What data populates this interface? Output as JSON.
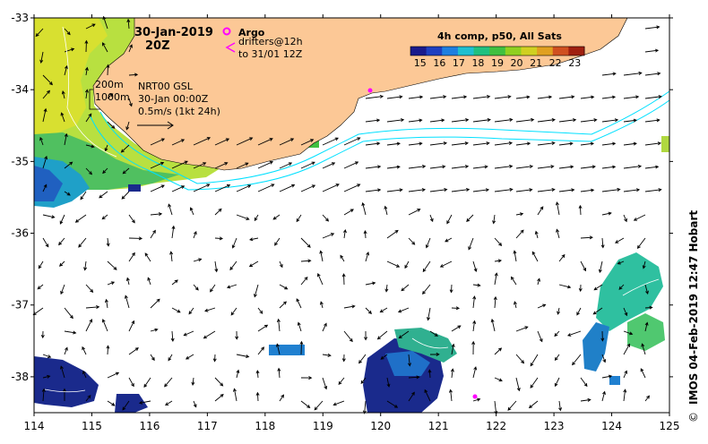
{
  "title": {
    "date": "30-Jan-2019",
    "time": "20Z"
  },
  "legend_markers": {
    "argo_label": "Argo",
    "drifters_line1": "drifters@12h",
    "drifters_line2": "to 31/01 12Z",
    "argo_color": "#ff00ff",
    "drifter_color": "#ff00ff"
  },
  "isobaths": {
    "depth1": "200m",
    "depth2": "1000m"
  },
  "currents_info": {
    "source": "NRT00 GSL",
    "timestamp": "30-Jan 00:00Z",
    "scale": "0.5m/s (1kt 24h)"
  },
  "colorbar": {
    "title": "4h comp, p50, All Sats",
    "ticks": [
      "15",
      "16",
      "17",
      "18",
      "19",
      "20",
      "21",
      "22",
      "23"
    ],
    "tick_values": [
      15,
      16,
      17,
      18,
      19,
      20,
      21,
      22,
      23
    ],
    "range": [
      14.5,
      23.5
    ],
    "colors": [
      "#1a1a8c",
      "#1f3fc0",
      "#1f7fe0",
      "#1fbfd0",
      "#20c080",
      "#40c040",
      "#90d020",
      "#d0d020",
      "#e0a020",
      "#d05020",
      "#a02010"
    ]
  },
  "axes": {
    "lon_ticks": [
      "114",
      "115",
      "116",
      "117",
      "118",
      "119",
      "120",
      "121",
      "122",
      "123",
      "124",
      "125"
    ],
    "lon_values": [
      114,
      115,
      116,
      117,
      118,
      119,
      120,
      121,
      122,
      123,
      124,
      125
    ],
    "lat_ticks": [
      "-33",
      "-34",
      "-35",
      "-36",
      "-37",
      "-38"
    ],
    "lat_values": [
      -33,
      -34,
      -35,
      -36,
      -37,
      -38
    ],
    "lon_range": [
      114,
      125
    ],
    "lat_range": [
      -33,
      -38.5
    ]
  },
  "credit": "IMOS 04-Feb-2019 12:47 Hobart",
  "credit_symbol": "©",
  "map_colors": {
    "land": "#fcc896",
    "ocean": "#ffffff",
    "isobath": "#00e0ff"
  }
}
